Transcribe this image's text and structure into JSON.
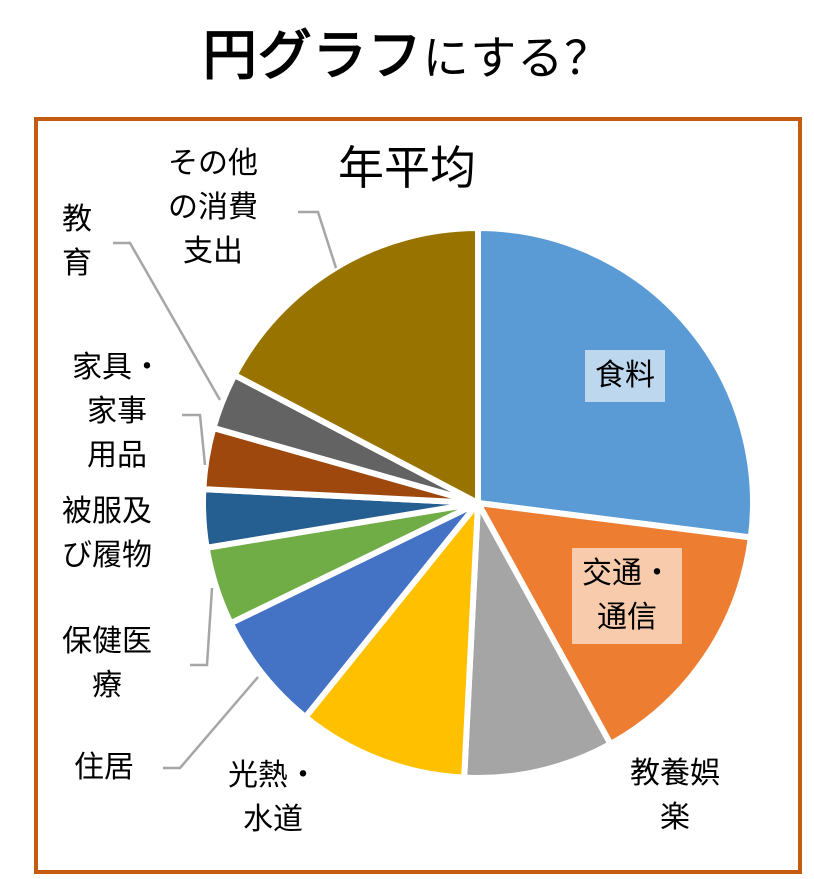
{
  "header": {
    "title_bold": "円グラフ",
    "title_rest": "にする？"
  },
  "chart_data": {
    "type": "pie",
    "title": "年平均",
    "start_angle_deg": 0,
    "direction": "clockwise",
    "unit": "%",
    "categories": [
      "食料",
      "交通・通信",
      "教養娯楽",
      "光熱・水道",
      "住居",
      "保健医療",
      "被服及び履物",
      "家具・家事用品",
      "教育",
      "その他の消費支出"
    ],
    "values": [
      27.0,
      15.0,
      8.8,
      10.0,
      7.0,
      4.6,
      3.4,
      3.6,
      3.3,
      17.3
    ],
    "colors": [
      "#5B9BD5",
      "#ED7D31",
      "#A5A5A5",
      "#FFC000",
      "#4472C4",
      "#70AD47",
      "#255E91",
      "#9E480E",
      "#636363",
      "#997300"
    ],
    "label_position": "mixed (inside for 食料 and 交通・通信, outside with leader lines for others)",
    "legend": "none"
  },
  "labels": {
    "food": "食料",
    "transport": "交通・\n通信",
    "culture": "教養娯\n楽",
    "utilities": "光熱・\n水道",
    "housing": "住居",
    "medical": "保健医\n療",
    "clothing": "被服及\nび履物",
    "furniture": "家具・\n家事\n用品",
    "education": "教\n育",
    "other": "その他\nの消費\n支出"
  },
  "style": {
    "frame_color": "#C55A11",
    "leader_line_color": "#A6A6A6",
    "food_label_bg": "#BDD7EE",
    "transport_label_bg": "#F8CBAD"
  }
}
